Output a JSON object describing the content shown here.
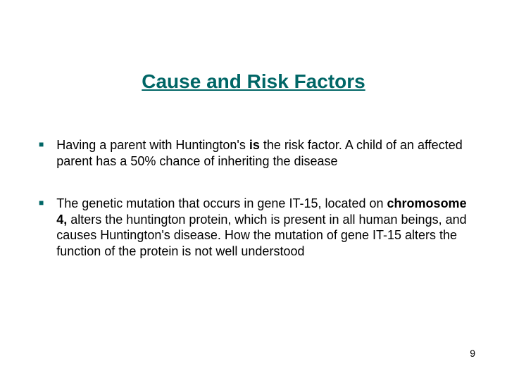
{
  "title": "Cause and Risk Factors",
  "title_color": "#006666",
  "title_fontsize": 28,
  "bullet_color": "#006666",
  "body_fontsize": 18,
  "background_color": "#ffffff",
  "bullets": [
    {
      "runs": [
        {
          "t": "Having a parent with Huntington's "
        },
        {
          "t": "is",
          "bold": true
        },
        {
          "t": " the risk factor. A child of an affected parent has a 50% chance of inheriting the disease"
        }
      ]
    },
    {
      "runs": [
        {
          "t": "The genetic mutation that occurs in gene IT-15, located on "
        },
        {
          "t": "chromosome 4,",
          "bold": true
        },
        {
          "t": " alters the huntington protein, which is present in all human beings, and causes Huntington's disease. How the mutation of gene IT-15 alters the function of the protein is not well understood"
        }
      ]
    }
  ],
  "page_number": "9"
}
